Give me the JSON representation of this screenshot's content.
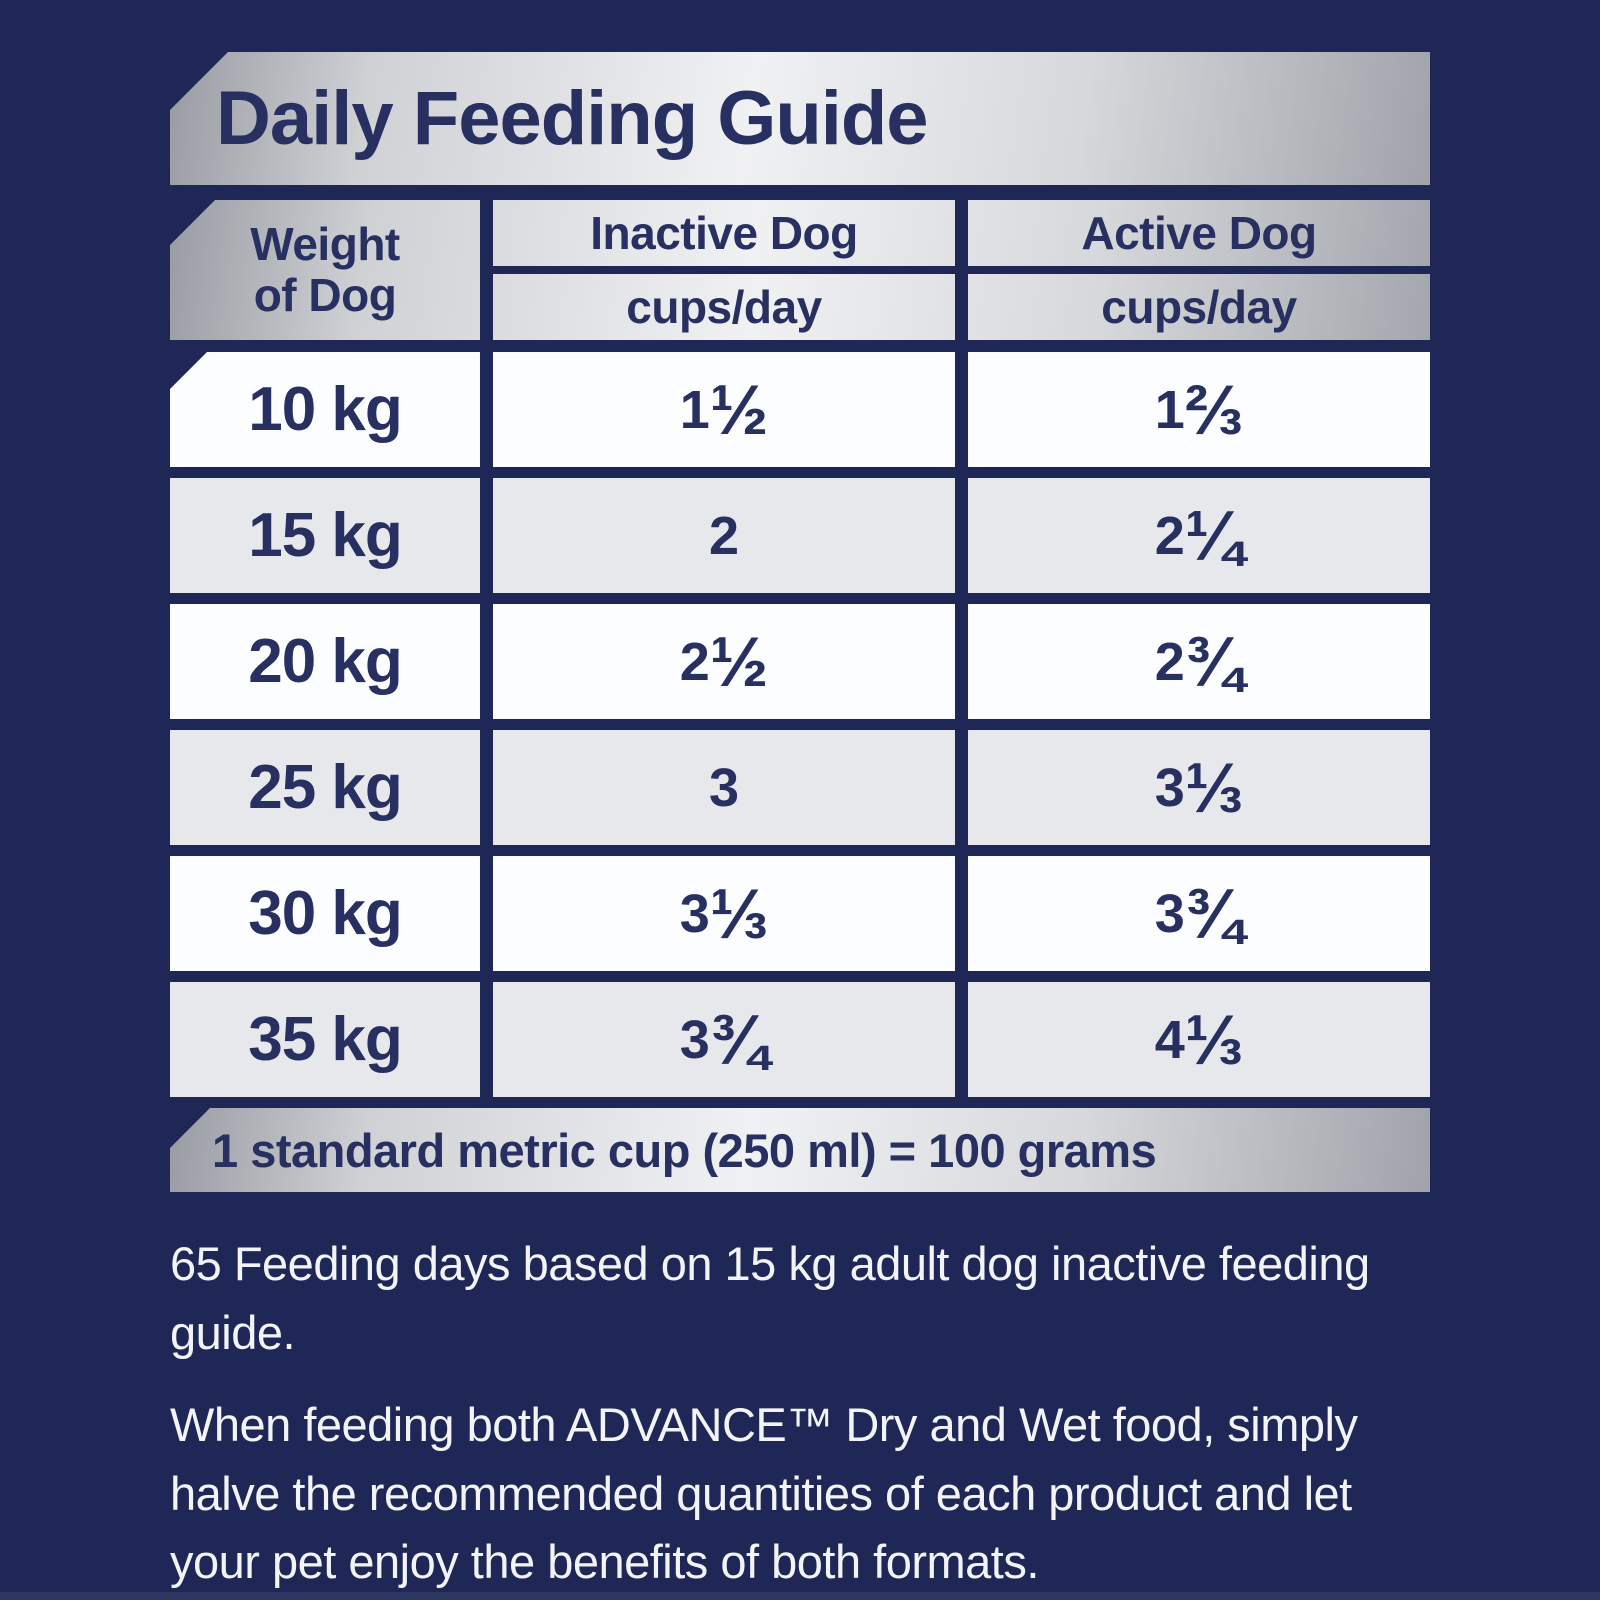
{
  "title": "Daily Feeding Guide",
  "table": {
    "weight_header_line1": "Weight",
    "weight_header_line2": "of Dog",
    "columns": [
      {
        "label": "Inactive Dog",
        "sublabel": "cups/day"
      },
      {
        "label": "Active Dog",
        "sublabel": "cups/day"
      }
    ],
    "rows": [
      {
        "weight": "10 kg",
        "inactive": "1 ½",
        "active": "1 ⅔"
      },
      {
        "weight": "15 kg",
        "inactive": "2",
        "active": "2 ¼"
      },
      {
        "weight": "20 kg",
        "inactive": "2 ½",
        "active": "2 ¾"
      },
      {
        "weight": "25 kg",
        "inactive": "3",
        "active": "3 ⅓"
      },
      {
        "weight": "30 kg",
        "inactive": "3 ⅓",
        "active": "3 ¾"
      },
      {
        "weight": "35 kg",
        "inactive": "3 ¾",
        "active": "4 ⅓"
      }
    ]
  },
  "footer_note": "1 standard metric cup (250 ml) = 100 grams",
  "notes": [
    "65 Feeding days based on 15 kg adult dog inactive feeding guide.",
    "When feeding both ADVANCE™ Dry and Wet food, simply halve the recommended quantities of each product and let your pet enjoy the benefits of both formats."
  ],
  "colors": {
    "navy": "#1e2755",
    "text_navy": "#273060",
    "row_white": "#fcfdfe",
    "row_gray": "#e7e8ec",
    "silver_dark": "#989ba2",
    "silver_light": "#f0f1f3",
    "note_white": "#f2f4f8"
  }
}
